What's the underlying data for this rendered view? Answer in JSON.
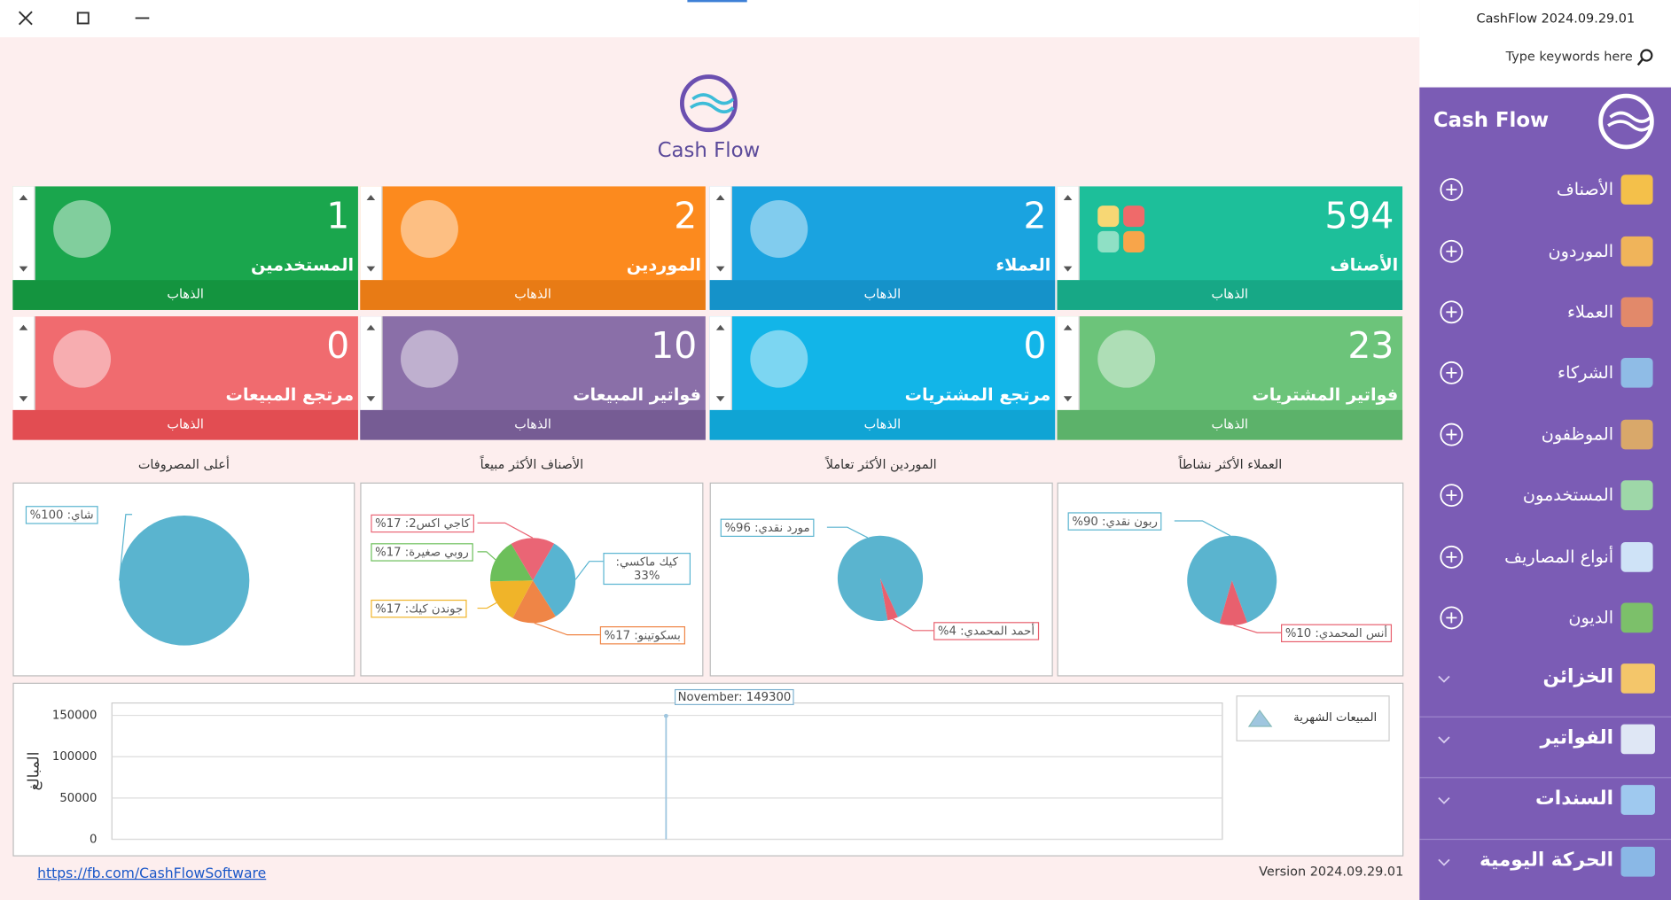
{
  "header": {
    "logo_text": "Cash Flow"
  },
  "sidebar": {
    "app_version": "CashFlow 2024.09.29.01",
    "search_placeholder": "Type keywords here",
    "brand": "Cash Flow",
    "items": [
      "الأصناف",
      "الموردون",
      "العملاء",
      "الشركاء",
      "الموظفون",
      "المستخدمون",
      "أنواع المصاريف",
      "الديون"
    ],
    "sections": [
      "الخزائن",
      "الفواتير",
      "السندات",
      "الحركة اليومية"
    ]
  },
  "tiles": [
    {
      "label": "الأصناف",
      "value": 594,
      "action": "الذهاب",
      "color": "#1dbf9a",
      "bar": "#17a886"
    },
    {
      "label": "العملاء",
      "value": 2,
      "action": "الذهاب",
      "color": "#1aa3e0",
      "bar": "#1592c9"
    },
    {
      "label": "الموردين",
      "value": 2,
      "action": "الذهاب",
      "color": "#fc8a1e",
      "bar": "#e87b15"
    },
    {
      "label": "المستخدمين",
      "value": 1,
      "action": "الذهاب",
      "color": "#1aa64d",
      "bar": "#14943f"
    },
    {
      "label": "فواتير المشتريات",
      "value": 23,
      "action": "الذهاب",
      "color": "#6cc47a",
      "bar": "#5cb26a"
    },
    {
      "label": "مرتجع المشتريات",
      "value": 0,
      "action": "الذهاب",
      "color": "#12b5e8",
      "bar": "#10a4d4"
    },
    {
      "label": "فواتير المبيعات",
      "value": 10,
      "action": "الذهاب",
      "color": "#8a6fa8",
      "bar": "#765c94"
    },
    {
      "label": "مرتجع المبيعات",
      "value": 0,
      "action": "الذهاب",
      "color": "#f06b6f",
      "bar": "#e24d52"
    }
  ],
  "charts": [
    {
      "title": "العملاء الأكثر نشاطاً",
      "slices": [
        {
          "label": "%ربون نقدي: 90",
          "value": 90,
          "color": "#5ab4cf"
        },
        {
          "label": "%أنس المحمدي: 10",
          "value": 10,
          "color": "#e8606e"
        }
      ]
    },
    {
      "title": "الموردين الأكثر تعاملاً",
      "slices": [
        {
          "label": "%مورد نقدي: 96",
          "value": 96,
          "color": "#5ab4cf"
        },
        {
          "label": "%أحمد المحمدي: 4",
          "value": 4,
          "color": "#e8606e"
        }
      ]
    },
    {
      "title": "الأصناف الأكثر مبيعاً",
      "slices": [
        {
          "label": "كيك ماكسي: 33%",
          "value": 33,
          "color": "#58b4d1"
        },
        {
          "label": "%بسكوتينو: 17",
          "value": 17,
          "color": "#ef8546"
        },
        {
          "label": "%جوندن كيك: 17",
          "value": 17,
          "color": "#f0b429"
        },
        {
          "label": "%روبي صغيرة: 17",
          "value": 17,
          "color": "#6cbf5a"
        },
        {
          "label": "%كاجي اكس2: 17",
          "value": 17,
          "color": "#ea6575"
        }
      ]
    },
    {
      "title": "أعلى المصروفات",
      "slices": [
        {
          "label": "%شاي: 100",
          "value": 100,
          "color": "#5ab4cf"
        }
      ]
    }
  ],
  "sales_chart": {
    "legend": "المبيعات الشهرية",
    "y_label": "المبالغ",
    "ylim": [
      0,
      165000
    ],
    "yticks": [
      0,
      50000,
      100000,
      150000
    ],
    "point": {
      "value": 149300,
      "annotation": "November: 149300"
    },
    "color": "#9fc6df"
  },
  "footer": {
    "link": "https://fb.com/CashFlowSoftware",
    "version": "Version 2024.09.29.01"
  }
}
